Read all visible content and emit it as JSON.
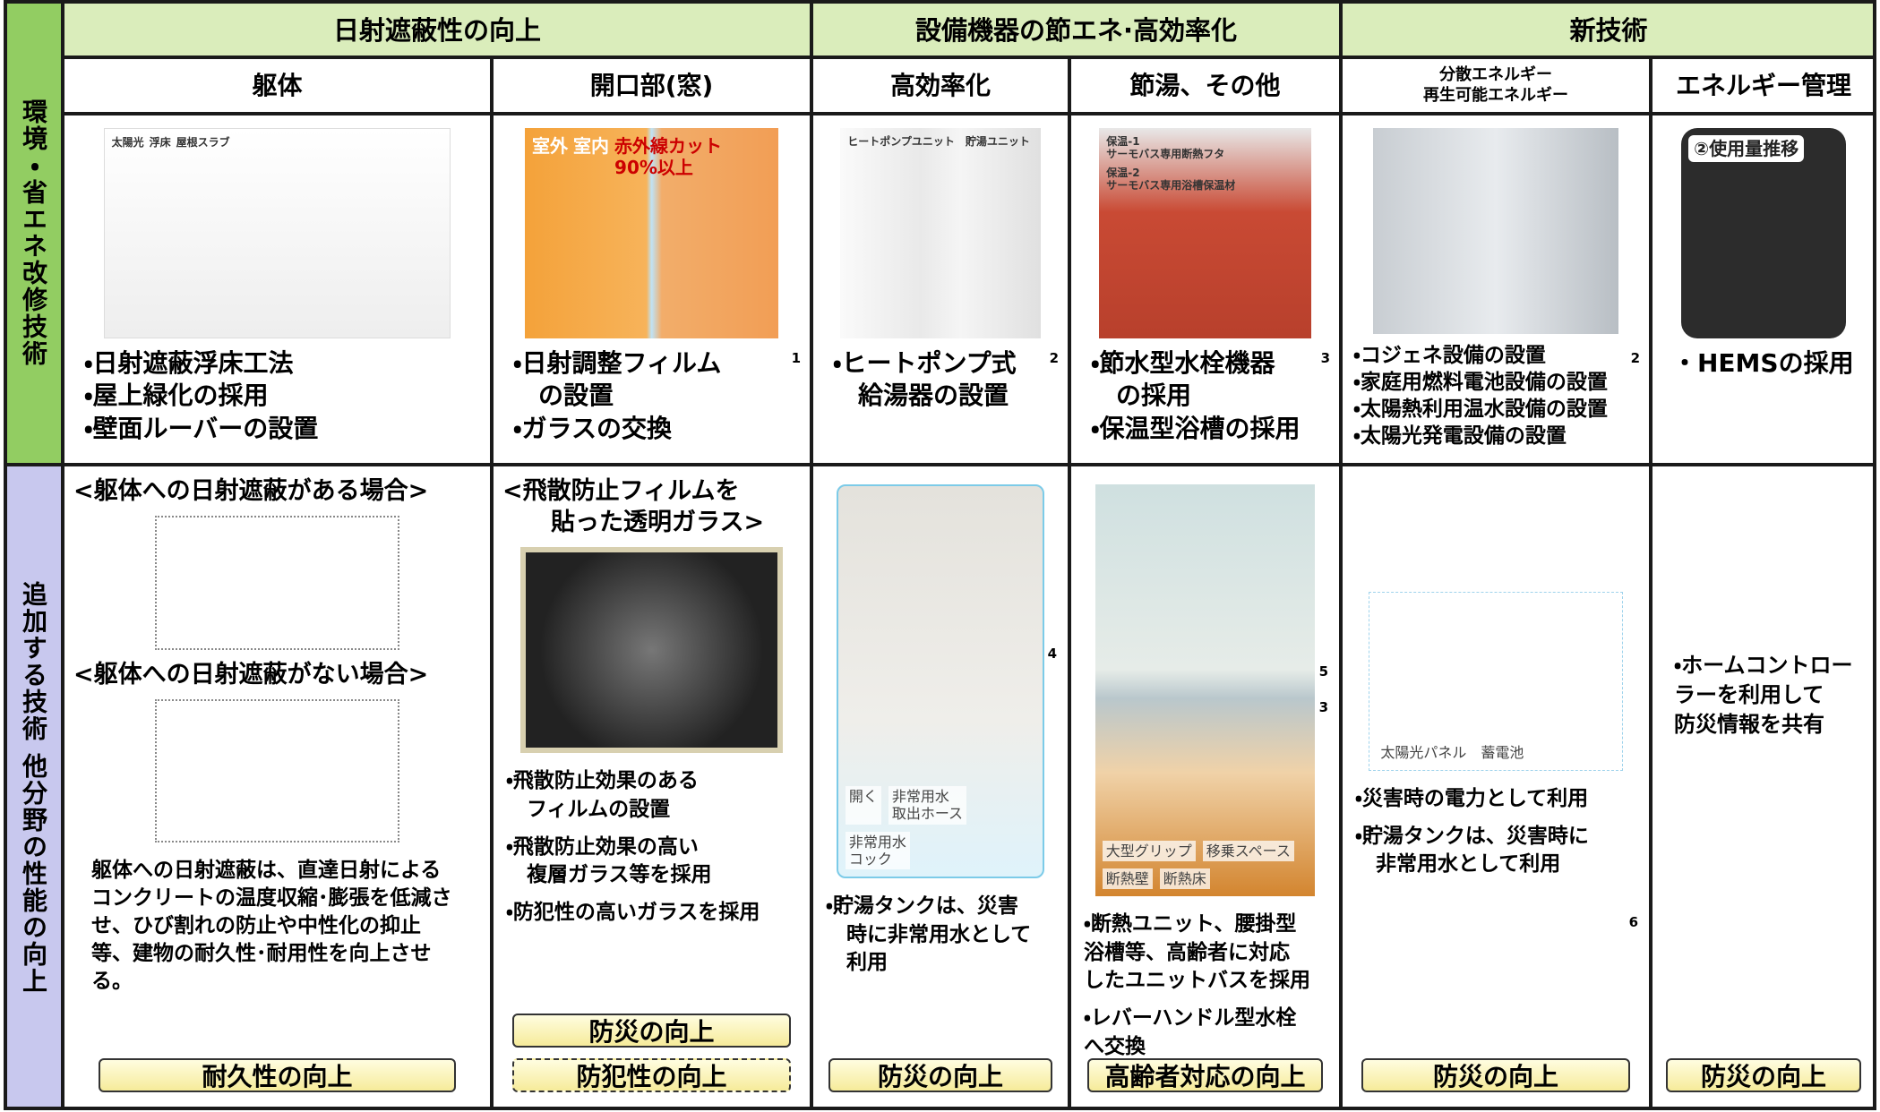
{
  "row_headers": [
    "環境・省エネ改修技術",
    "追加する技術 他分野の性能の向上"
  ],
  "groups": [
    "日射遮蔽性の向上",
    "設備機器の節エネ·高効率化",
    "新技術"
  ],
  "columns": [
    {
      "header": "躯体",
      "image_labels": [
        "太陽光",
        "浮床",
        "屋根スラブ"
      ],
      "tech": [
        "・日射遮蔽浮床工法",
        "・屋上緑化の採用",
        "・壁面ルーバーの設置"
      ],
      "added": {
        "headings": [
          "<躯体への日射遮蔽がある場合>",
          "<躯体への日射遮蔽がない場合>"
        ],
        "text": "躯体への日射遮蔽は、直達日射による\nコンクリートの温度収縮･膨張を低減さ\nせ、ひび割れの防止や中性化の抑止\n等、建物の耐久性･耐用性を向上させ\nる。",
        "badges": [
          "耐久性の向上"
        ]
      }
    },
    {
      "header": "開口部(窓)",
      "image_labels": [
        "室外",
        "室内",
        "赤外線カット\n90%以上"
      ],
      "note": "1",
      "tech": [
        "・日射調整フィルム\n　の設置",
        "・ガラスの交換"
      ],
      "added": {
        "headings": [
          "<飛散防止フィルムを\n　　貼った透明ガラス>"
        ],
        "items": [
          "・飛散防止効果のある\n　フィルムの設置",
          "・飛散防止効果の高い\n　複層ガラス等を採用",
          "・防犯性の高いガラスを採用"
        ],
        "badges": [
          "防災の向上",
          "防犯性の向上"
        ]
      }
    },
    {
      "header": "高効率化",
      "image_labels": [
        "ヒートポンプユニット　貯湯ユニット"
      ],
      "note": "2",
      "tech": [
        "・ヒートポンプ式\n　給湯器の設置"
      ],
      "added": {
        "image_labels": [
          "開く",
          "非常用水\n取出ホース",
          "非常用水\nコック"
        ],
        "notes": [
          "4"
        ],
        "items": [
          "・貯湯タンクは、災害\n　時に非常用水として\n　利用"
        ],
        "badges": [
          "防災の向上"
        ]
      }
    },
    {
      "header": "節湯、その他",
      "image_labels": [
        "保温-1\nサーモバス専用断熱フタ",
        "保温-2\nサーモバス専用浴槽保温材"
      ],
      "note": "3",
      "tech": [
        "・節水型水栓機器\n　の採用",
        "・保温型浴槽の採用"
      ],
      "added": {
        "image_labels": [
          "大型グリップ",
          "移乗スペース",
          "断熱壁",
          "断熱床"
        ],
        "notes": [
          "5",
          "3"
        ],
        "items": [
          "・断熱ユニット、腰掛型\n浴槽等、高齢者に対応\nしたユニットバスを採用",
          "・レバーハンドル型水栓\nへ交換"
        ],
        "badges": [
          "高齢者対応の向上"
        ]
      }
    },
    {
      "header": "分散エネルギー\n再生可能エネルギー",
      "image_labels": [],
      "note": "2",
      "tech": [
        "・コジェネ設備の設置",
        "・家庭用燃料電池設備の設置",
        "・太陽熱利用温水設備の設置",
        "・太陽光発電設備の設置"
      ],
      "added": {
        "image_labels": [
          "太陽光パネル",
          "蓄電池"
        ],
        "notes": [
          "6"
        ],
        "items": [
          "・災害時の電力として利用",
          "・貯湯タンクは、災害時に\n　非常用水として利用"
        ],
        "badges": [
          "防災の向上"
        ]
      }
    },
    {
      "header": "エネルギー管理",
      "image_labels": [
        "②使用量推移"
      ],
      "tech": [
        "・HEMSの採用"
      ],
      "added": {
        "items": [
          "・ホームコントローラーを利用して\n防災情報を共有"
        ],
        "badges": [
          "防災の向上"
        ]
      }
    }
  ]
}
